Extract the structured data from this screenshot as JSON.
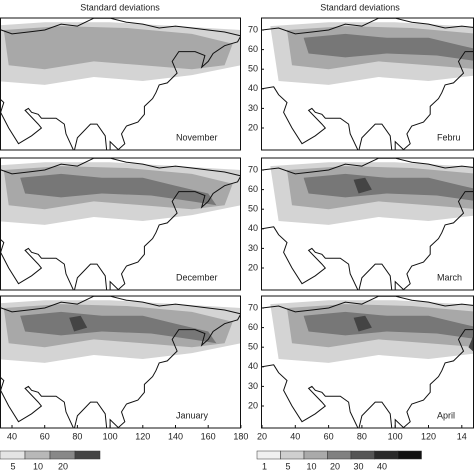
{
  "left_column": {
    "header": "Standard deviations",
    "panels": [
      {
        "label": "November"
      },
      {
        "label": "December"
      },
      {
        "label": "January"
      }
    ],
    "x_ticks": [
      40,
      60,
      80,
      100,
      120,
      140,
      160,
      180
    ],
    "legend_ticks": [
      5,
      10,
      20
    ]
  },
  "right_column": {
    "header": "Standard deviations",
    "panels": [
      {
        "label": "Febru",
        "y_ticks": [
          70,
          60,
          50,
          40,
          30,
          20
        ]
      },
      {
        "label": "March",
        "y_ticks": [
          70,
          60,
          50,
          40,
          30,
          20
        ]
      },
      {
        "label": "April",
        "y_ticks": [
          70,
          60,
          50,
          40,
          30,
          20
        ]
      }
    ],
    "x_ticks": [
      20,
      40,
      60,
      80,
      100,
      120,
      14
    ],
    "legend_ticks": [
      1,
      5,
      10,
      20,
      30,
      40
    ]
  }
}
